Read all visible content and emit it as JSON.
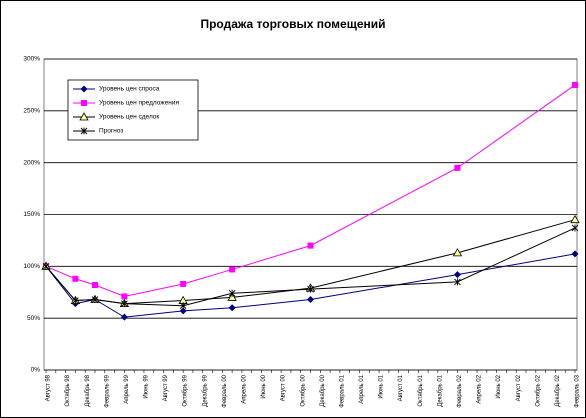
{
  "chart_data": {
    "type": "line",
    "title": "Продажа торговых помещений",
    "categories": [
      "Август 98",
      null,
      "Октябрь 98",
      null,
      "Декабрь 98",
      null,
      "Февраль 99",
      null,
      "Апрель 99",
      null,
      "Июнь 99",
      null,
      "Август 99",
      null,
      "Октябрь 99",
      null,
      "Декабрь 99",
      null,
      "Февраль 00",
      null,
      "Апрель 00",
      null,
      "Июнь 00",
      null,
      "Август 00",
      null,
      "Октябрь 00",
      null,
      "Декабрь 00",
      null,
      "Февраль 01",
      null,
      "Апрель 01",
      null,
      "Июнь 01",
      null,
      "Август 01",
      null,
      "Октябрь 01",
      null,
      "Декабрь 01",
      null,
      "Февраль 02",
      null,
      "Апрель 02",
      null,
      "Июнь 02",
      null,
      "Август 02",
      null,
      "Октябрь 02",
      null,
      "Декабрь 02",
      null,
      "Февраль 03"
    ],
    "series": [
      {
        "name": "Уровень цен спроса",
        "color": "#000080",
        "marker": "diamond",
        "values": [
          100,
          null,
          null,
          64,
          null,
          68,
          null,
          null,
          51,
          null,
          null,
          null,
          null,
          null,
          57,
          null,
          null,
          null,
          null,
          60,
          null,
          null,
          null,
          null,
          null,
          null,
          null,
          68,
          null,
          null,
          null,
          null,
          null,
          null,
          null,
          null,
          null,
          null,
          null,
          null,
          null,
          null,
          92,
          null,
          null,
          null,
          null,
          null,
          null,
          null,
          null,
          null,
          null,
          null,
          112
        ]
      },
      {
        "name": "Уровень цен предложения",
        "color": "#ff00ff",
        "marker": "square",
        "values": [
          100,
          null,
          null,
          88,
          null,
          82,
          null,
          null,
          71,
          null,
          null,
          null,
          null,
          null,
          83,
          null,
          null,
          null,
          null,
          97,
          null,
          null,
          null,
          null,
          null,
          null,
          null,
          120,
          null,
          null,
          null,
          null,
          null,
          null,
          null,
          null,
          null,
          null,
          null,
          null,
          null,
          null,
          195,
          null,
          null,
          null,
          null,
          null,
          null,
          null,
          null,
          null,
          null,
          null,
          275
        ]
      },
      {
        "name": "Уровень цен сделок",
        "color": "#000000",
        "marker": "triangle",
        "values": [
          100,
          null,
          null,
          67,
          null,
          68,
          null,
          null,
          64,
          null,
          null,
          null,
          null,
          null,
          67,
          null,
          null,
          null,
          null,
          70,
          null,
          null,
          null,
          null,
          null,
          null,
          null,
          79,
          null,
          null,
          null,
          null,
          null,
          null,
          null,
          null,
          null,
          null,
          null,
          null,
          null,
          null,
          113,
          null,
          null,
          null,
          null,
          null,
          null,
          null,
          null,
          null,
          null,
          null,
          145
        ]
      },
      {
        "name": "Прогноз",
        "color": "#000000",
        "marker": "star",
        "values": [
          100,
          null,
          null,
          67,
          null,
          68,
          null,
          null,
          64,
          null,
          null,
          null,
          null,
          null,
          62,
          null,
          null,
          null,
          null,
          74,
          null,
          null,
          null,
          null,
          null,
          null,
          null,
          78,
          null,
          null,
          null,
          null,
          null,
          null,
          null,
          null,
          null,
          null,
          null,
          null,
          null,
          null,
          85,
          null,
          null,
          null,
          null,
          null,
          null,
          null,
          null,
          null,
          null,
          null,
          137
        ]
      }
    ],
    "ylim": [
      0,
      300
    ],
    "yticks": [
      {
        "value": 0,
        "label": "0%"
      },
      {
        "value": 50,
        "label": "50%"
      },
      {
        "value": 100,
        "label": "100%"
      },
      {
        "value": 150,
        "label": "150%"
      },
      {
        "value": 200,
        "label": "200%"
      },
      {
        "value": 250,
        "label": "250%"
      },
      {
        "value": 300,
        "label": "300%"
      }
    ],
    "grid": true,
    "legend": "top-left"
  }
}
